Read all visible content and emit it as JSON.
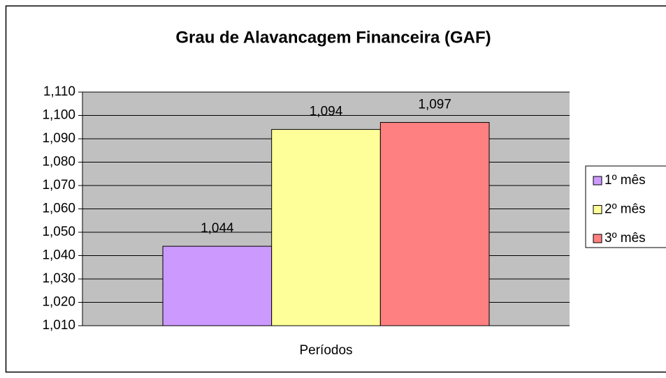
{
  "chart_data": {
    "type": "bar",
    "title": "Grau de Alavancagem Financeira (GAF)",
    "categories": [
      "Períodos"
    ],
    "series": [
      {
        "name": "1º mês",
        "color": "#cc99ff",
        "values": [
          1.044
        ],
        "value_labels": [
          "1,044"
        ]
      },
      {
        "name": "2º mês",
        "color": "#ffff99",
        "values": [
          1.094
        ],
        "value_labels": [
          "1,094"
        ]
      },
      {
        "name": "3º mês",
        "color": "#ff8080",
        "values": [
          1.097
        ],
        "value_labels": [
          "1,097"
        ]
      }
    ],
    "ylim": [
      1.01,
      1.11
    ],
    "yticks": [
      {
        "value": 1.01,
        "label": "1,010"
      },
      {
        "value": 1.02,
        "label": "1,020"
      },
      {
        "value": 1.03,
        "label": "1,030"
      },
      {
        "value": 1.04,
        "label": "1,040"
      },
      {
        "value": 1.05,
        "label": "1,050"
      },
      {
        "value": 1.06,
        "label": "1,060"
      },
      {
        "value": 1.07,
        "label": "1,070"
      },
      {
        "value": 1.08,
        "label": "1,080"
      },
      {
        "value": 1.09,
        "label": "1,090"
      },
      {
        "value": 1.1,
        "label": "1,100"
      },
      {
        "value": 1.11,
        "label": "1,110"
      }
    ],
    "grid": true,
    "legend": "right"
  }
}
